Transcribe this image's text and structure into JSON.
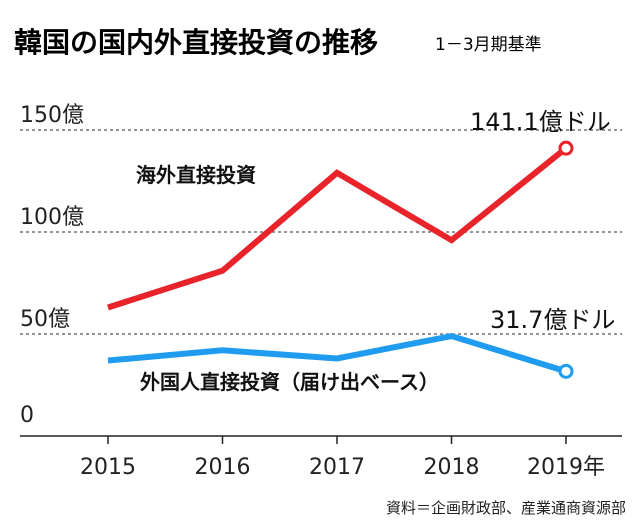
{
  "chart_data": {
    "type": "line",
    "title": "韓国の国内外直接投資の推移",
    "subtitle": "1－3月期基準",
    "categories": [
      "2015",
      "2016",
      "2017",
      "2018",
      "2019年"
    ],
    "y_ticks": [
      "0",
      "50億",
      "100億",
      "150億"
    ],
    "ylim": [
      0,
      150
    ],
    "grid": "dashed horizontal at 50, 100, 150",
    "series": [
      {
        "name": "海外直接投資",
        "color": "#e8232a",
        "values": [
          63,
          81,
          129,
          96,
          141.1
        ],
        "end_label": "141.1億ドル"
      },
      {
        "name": "外国人直接投資（届け出ベース）",
        "color": "#1f9cef",
        "values": [
          37,
          42,
          38,
          49,
          31.7
        ],
        "end_label": "31.7億ドル"
      }
    ],
    "source": "資料＝企画財政部、産業通商資源部"
  }
}
